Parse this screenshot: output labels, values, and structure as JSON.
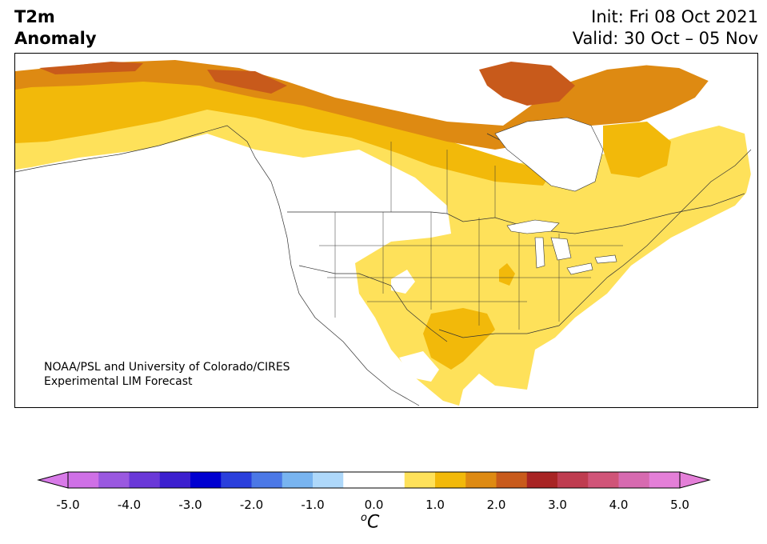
{
  "title": {
    "line1": "T2m",
    "line2": "Anomaly",
    "init": "Init: Fri 08 Oct 2021",
    "valid": "Valid: 30 Oct – 05 Nov"
  },
  "credit": {
    "line1": "NOAA/PSL and University of Colorado/CIRES",
    "line2": "Experimental LIM Forecast"
  },
  "colorbar": {
    "units_sup": "o",
    "units_main": "C",
    "tick_labels": [
      "-5.0",
      "-4.0",
      "-3.0",
      "-2.0",
      "-1.0",
      "0.0",
      "1.0",
      "2.0",
      "3.0",
      "4.0",
      "5.0"
    ],
    "colors": [
      "#cf70e6",
      "#9a58e0",
      "#6a38d8",
      "#3c1fcf",
      "#0000d0",
      "#2a3fdc",
      "#4b78e6",
      "#78b4f0",
      "#aed8fa",
      "#ffffff",
      "#ffffff",
      "#fee15a",
      "#f2b90a",
      "#de8a12",
      "#c85a1b",
      "#a82424",
      "#bf3c50",
      "#d05478",
      "#d76ab0",
      "#e47fd8"
    ],
    "extend_low_color": "#d87ae8",
    "extend_high_color": "#e47fd8"
  },
  "map": {
    "ocean_color": "#ffffff",
    "land_color": "#ffffff",
    "anomaly_colors": {
      "0.5-1.0": "#fee15a",
      "1.0-1.5": "#f2b90a",
      "1.5-2.0": "#de8a12",
      "2.0-2.5": "#c85a1b"
    }
  }
}
